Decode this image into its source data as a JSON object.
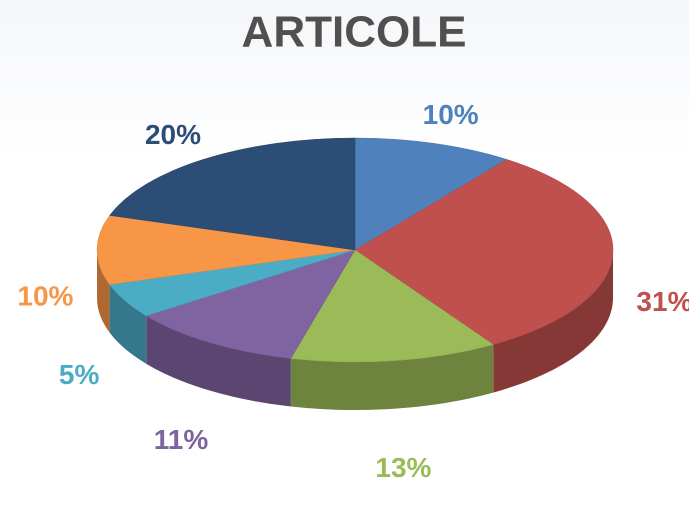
{
  "chart_data": {
    "type": "pie",
    "title": "ARTICOLE",
    "values": [
      10,
      31,
      13,
      11,
      5,
      10,
      20
    ],
    "value_labels": [
      "10%",
      "31%",
      "13%",
      "11%",
      "5%",
      "10%",
      "20%"
    ],
    "colors": [
      "#4f81bd",
      "#c0504d",
      "#9bbb59",
      "#8064a2",
      "#4bacc6",
      "#f79646",
      "#2c4d75"
    ]
  }
}
